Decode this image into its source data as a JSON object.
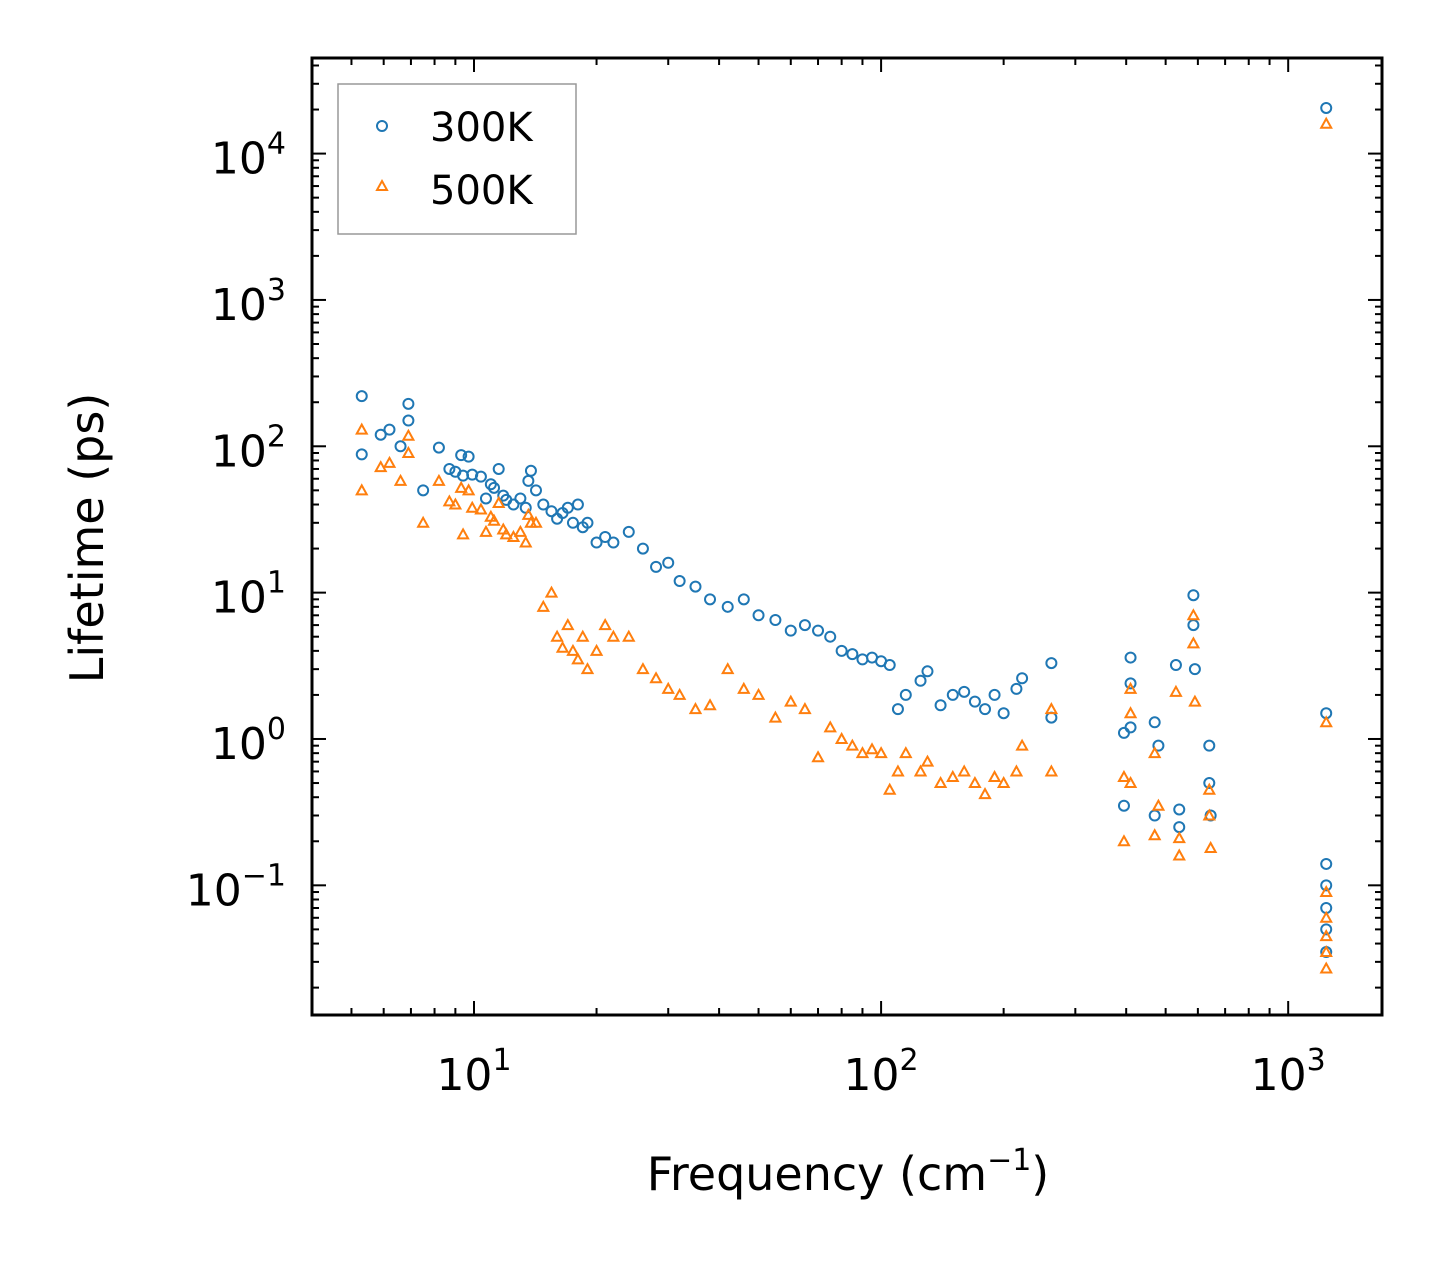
{
  "chart_data": {
    "type": "scatter",
    "title": "",
    "xlabel": "Frequency (cm",
    "xlabel_sup": "−1",
    "xlabel_close": ")",
    "ylabel": "Lifetime (ps)",
    "x_scale": "log",
    "y_scale": "log",
    "xlim": [
      4.0,
      1700
    ],
    "ylim": [
      0.013,
      45000
    ],
    "grid": false,
    "legend_position": "top-left",
    "x_ticks": [
      {
        "value": 10,
        "base": "10",
        "exp": "1"
      },
      {
        "value": 100,
        "base": "10",
        "exp": "2"
      },
      {
        "value": 1000,
        "base": "10",
        "exp": "3"
      }
    ],
    "y_ticks": [
      {
        "value": 0.1,
        "base": "10",
        "exp": "−1"
      },
      {
        "value": 1,
        "base": "10",
        "exp": "0"
      },
      {
        "value": 10,
        "base": "10",
        "exp": "1"
      },
      {
        "value": 100,
        "base": "10",
        "exp": "2"
      },
      {
        "value": 1000,
        "base": "10",
        "exp": "3"
      },
      {
        "value": 10000,
        "base": "10",
        "exp": "4"
      }
    ],
    "series": [
      {
        "name": "300K",
        "marker": "circle",
        "color": "#1f77b4",
        "points": [
          [
            5.3,
            220
          ],
          [
            5.3,
            88
          ],
          [
            5.9,
            120
          ],
          [
            6.2,
            130
          ],
          [
            6.6,
            100
          ],
          [
            6.9,
            150
          ],
          [
            6.9,
            195
          ],
          [
            7.5,
            50
          ],
          [
            8.2,
            98
          ],
          [
            8.7,
            70
          ],
          [
            9.0,
            67
          ],
          [
            9.3,
            87
          ],
          [
            9.4,
            63
          ],
          [
            9.7,
            85
          ],
          [
            9.9,
            64
          ],
          [
            10.4,
            62
          ],
          [
            10.7,
            44
          ],
          [
            11.0,
            55
          ],
          [
            11.2,
            52
          ],
          [
            11.5,
            70
          ],
          [
            11.8,
            46
          ],
          [
            12.0,
            43
          ],
          [
            12.5,
            40
          ],
          [
            13.0,
            44
          ],
          [
            13.4,
            38
          ],
          [
            13.6,
            58
          ],
          [
            13.8,
            68
          ],
          [
            14.2,
            50
          ],
          [
            14.8,
            40
          ],
          [
            15.5,
            36
          ],
          [
            16.0,
            32
          ],
          [
            16.5,
            35
          ],
          [
            17.0,
            38
          ],
          [
            17.5,
            30
          ],
          [
            18.0,
            40
          ],
          [
            18.5,
            28
          ],
          [
            19.0,
            30
          ],
          [
            20.0,
            22
          ],
          [
            21.0,
            24
          ],
          [
            22.0,
            22
          ],
          [
            24.0,
            26
          ],
          [
            26.0,
            20
          ],
          [
            28.0,
            15
          ],
          [
            30.0,
            16
          ],
          [
            32.0,
            12
          ],
          [
            35.0,
            11
          ],
          [
            38.0,
            9
          ],
          [
            42.0,
            8
          ],
          [
            46.0,
            9
          ],
          [
            50.0,
            7
          ],
          [
            55.0,
            6.5
          ],
          [
            60.0,
            5.5
          ],
          [
            65.0,
            6
          ],
          [
            70.0,
            5.5
          ],
          [
            75.0,
            5
          ],
          [
            80.0,
            4
          ],
          [
            85.0,
            3.8
          ],
          [
            90.0,
            3.5
          ],
          [
            95.0,
            3.6
          ],
          [
            100.0,
            3.4
          ],
          [
            105.0,
            3.2
          ],
          [
            110.0,
            1.6
          ],
          [
            115.0,
            2.0
          ],
          [
            125.0,
            2.5
          ],
          [
            130.0,
            2.9
          ],
          [
            140.0,
            1.7
          ],
          [
            150.0,
            2.0
          ],
          [
            160.0,
            2.1
          ],
          [
            170.0,
            1.8
          ],
          [
            180.0,
            1.6
          ],
          [
            190.0,
            2.0
          ],
          [
            200.0,
            1.5
          ],
          [
            215.0,
            2.2
          ],
          [
            222.0,
            2.6
          ],
          [
            262.0,
            3.3
          ],
          [
            262.0,
            1.4
          ],
          [
            395.0,
            1.1
          ],
          [
            395.0,
            0.35
          ],
          [
            410.0,
            2.4
          ],
          [
            410.0,
            3.6
          ],
          [
            410.0,
            1.2
          ],
          [
            470.0,
            1.3
          ],
          [
            470.0,
            0.3
          ],
          [
            480.0,
            0.9
          ],
          [
            530.0,
            3.2
          ],
          [
            540.0,
            0.33
          ],
          [
            540.0,
            0.25
          ],
          [
            585.0,
            9.6
          ],
          [
            585.0,
            6.0
          ],
          [
            590.0,
            3.0
          ],
          [
            640.0,
            0.9
          ],
          [
            640.0,
            0.5
          ],
          [
            645.0,
            0.3
          ],
          [
            1240.0,
            20500
          ],
          [
            1240.0,
            1.5
          ],
          [
            1240.0,
            0.14
          ],
          [
            1240.0,
            0.1
          ],
          [
            1240.0,
            0.07
          ],
          [
            1240.0,
            0.05
          ],
          [
            1240.0,
            0.035
          ]
        ]
      },
      {
        "name": "500K",
        "marker": "triangle",
        "color": "#ff7f0e",
        "points": [
          [
            5.3,
            130
          ],
          [
            5.3,
            50
          ],
          [
            5.9,
            72
          ],
          [
            6.2,
            77
          ],
          [
            6.6,
            58
          ],
          [
            6.9,
            90
          ],
          [
            6.9,
            118
          ],
          [
            7.5,
            30
          ],
          [
            8.2,
            58
          ],
          [
            8.7,
            42
          ],
          [
            9.0,
            40
          ],
          [
            9.3,
            52
          ],
          [
            9.4,
            25
          ],
          [
            9.7,
            50
          ],
          [
            9.9,
            38
          ],
          [
            10.4,
            37
          ],
          [
            10.7,
            26
          ],
          [
            11.0,
            33
          ],
          [
            11.2,
            31
          ],
          [
            11.5,
            41
          ],
          [
            11.8,
            27
          ],
          [
            12.0,
            25
          ],
          [
            12.5,
            24
          ],
          [
            13.0,
            26
          ],
          [
            13.4,
            22
          ],
          [
            13.6,
            34
          ],
          [
            13.8,
            30
          ],
          [
            14.2,
            30
          ],
          [
            14.8,
            8
          ],
          [
            15.5,
            10
          ],
          [
            16.0,
            5
          ],
          [
            16.5,
            4.2
          ],
          [
            17.0,
            6
          ],
          [
            17.5,
            4
          ],
          [
            18.0,
            3.5
          ],
          [
            18.5,
            5
          ],
          [
            19.0,
            3.0
          ],
          [
            20.0,
            4
          ],
          [
            21.0,
            6
          ],
          [
            22.0,
            5
          ],
          [
            24.0,
            5
          ],
          [
            26.0,
            3.0
          ],
          [
            28.0,
            2.6
          ],
          [
            30.0,
            2.2
          ],
          [
            32.0,
            2.0
          ],
          [
            35.0,
            1.6
          ],
          [
            38.0,
            1.7
          ],
          [
            42.0,
            3
          ],
          [
            46.0,
            2.2
          ],
          [
            50.0,
            2.0
          ],
          [
            55.0,
            1.4
          ],
          [
            60.0,
            1.8
          ],
          [
            65.0,
            1.6
          ],
          [
            70.0,
            0.75
          ],
          [
            75.0,
            1.2
          ],
          [
            80.0,
            1.0
          ],
          [
            85.0,
            0.9
          ],
          [
            90.0,
            0.8
          ],
          [
            95.0,
            0.85
          ],
          [
            100.0,
            0.8
          ],
          [
            105.0,
            0.45
          ],
          [
            110.0,
            0.6
          ],
          [
            115.0,
            0.8
          ],
          [
            125.0,
            0.6
          ],
          [
            130.0,
            0.7
          ],
          [
            140.0,
            0.5
          ],
          [
            150.0,
            0.55
          ],
          [
            160.0,
            0.6
          ],
          [
            170.0,
            0.5
          ],
          [
            180.0,
            0.42
          ],
          [
            190.0,
            0.55
          ],
          [
            200.0,
            0.5
          ],
          [
            215.0,
            0.6
          ],
          [
            222.0,
            0.9
          ],
          [
            262.0,
            1.6
          ],
          [
            262.0,
            0.6
          ],
          [
            395.0,
            0.55
          ],
          [
            395.0,
            0.2
          ],
          [
            410.0,
            2.2
          ],
          [
            410.0,
            1.5
          ],
          [
            410.0,
            0.5
          ],
          [
            470.0,
            0.8
          ],
          [
            470.0,
            0.22
          ],
          [
            480.0,
            0.35
          ],
          [
            530.0,
            2.1
          ],
          [
            540.0,
            0.21
          ],
          [
            540.0,
            0.16
          ],
          [
            585.0,
            7.0
          ],
          [
            585.0,
            4.5
          ],
          [
            590.0,
            1.8
          ],
          [
            640.0,
            0.45
          ],
          [
            640.0,
            0.3
          ],
          [
            645.0,
            0.18
          ],
          [
            1240.0,
            16000
          ],
          [
            1240.0,
            1.3
          ],
          [
            1240.0,
            0.09
          ],
          [
            1240.0,
            0.06
          ],
          [
            1240.0,
            0.045
          ],
          [
            1240.0,
            0.035
          ],
          [
            1240.0,
            0.027
          ]
        ]
      }
    ]
  }
}
